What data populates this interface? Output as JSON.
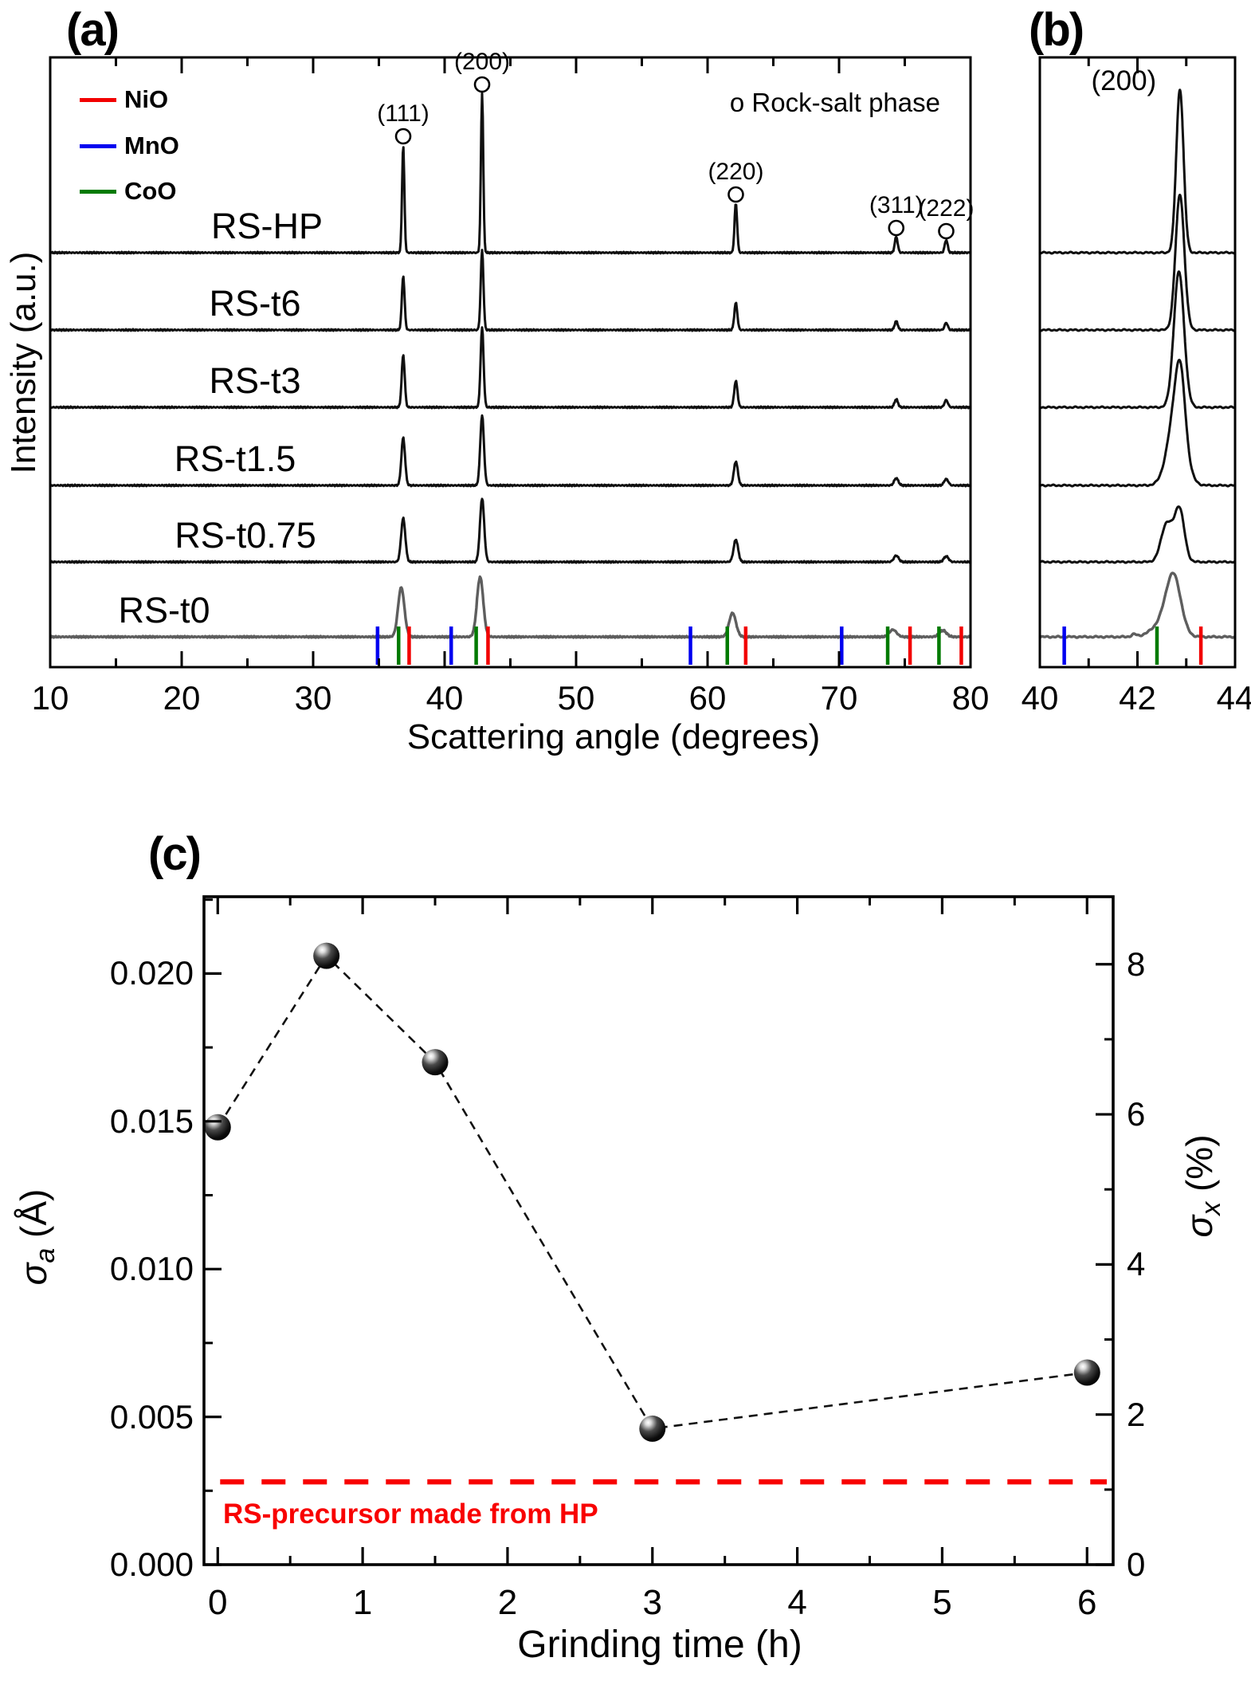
{
  "chart_data": [
    {
      "id": "a",
      "type": "line",
      "title": "(a)",
      "xlabel": "Scattering angle (degrees)",
      "ylabel": "Intensity (a.u.)",
      "note": "o Rock-salt phase",
      "xlim": [
        10,
        80
      ],
      "xticks": [
        10,
        20,
        30,
        40,
        50,
        60,
        70,
        80
      ],
      "minor_tick_step": 5,
      "grid": false,
      "legend_position": "top-left",
      "legend": [
        {
          "label": "NiO",
          "color": "#f20000"
        },
        {
          "label": "MnO",
          "color": "#0000f0"
        },
        {
          "label": "CoO",
          "color": "#007a00"
        }
      ],
      "peak_labels": [
        {
          "text": "(111)",
          "angle": 36.85,
          "marker": "circle"
        },
        {
          "text": "(200)",
          "angle": 42.85,
          "marker": "circle"
        },
        {
          "text": "(220)",
          "angle": 62.15,
          "marker": "circle"
        },
        {
          "text": "(311)",
          "angle": 74.35,
          "marker": "circle"
        },
        {
          "text": "(222)",
          "angle": 78.15,
          "marker": "circle"
        }
      ],
      "series": [
        {
          "label": "RS-HP",
          "color": "#101010",
          "peaks": [
            [
              36.85,
              135,
              0.09
            ],
            [
              42.85,
              200,
              0.09
            ],
            [
              62.15,
              62,
              0.1
            ],
            [
              74.35,
              20,
              0.11
            ],
            [
              78.15,
              16,
              0.11
            ]
          ]
        },
        {
          "label": "RS-t6",
          "color": "#101010",
          "peaks": [
            [
              36.85,
              68,
              0.105
            ],
            [
              42.85,
              100,
              0.105
            ],
            [
              62.15,
              34,
              0.115
            ],
            [
              74.35,
              11,
              0.12
            ],
            [
              78.15,
              9,
              0.12
            ]
          ]
        },
        {
          "label": "RS-t3",
          "color": "#101010",
          "peaks": [
            [
              36.85,
              66,
              0.115
            ],
            [
              42.85,
              100,
              0.115
            ],
            [
              62.15,
              33,
              0.125
            ],
            [
              74.35,
              10,
              0.13
            ],
            [
              78.15,
              9,
              0.13
            ]
          ]
        },
        {
          "label": "RS-t1.5",
          "color": "#101010",
          "peaks": [
            [
              36.85,
              60,
              0.14
            ],
            [
              42.85,
              88,
              0.14
            ],
            [
              62.15,
              30,
              0.15
            ],
            [
              74.35,
              9,
              0.16
            ],
            [
              78.15,
              8,
              0.16
            ]
          ]
        },
        {
          "label": "RS-t0.75",
          "color": "#101010",
          "peaks": [
            [
              36.85,
              55,
              0.16
            ],
            [
              42.85,
              80,
              0.16
            ],
            [
              62.15,
              28,
              0.17
            ],
            [
              74.35,
              8,
              0.18
            ],
            [
              78.15,
              7,
              0.18
            ]
          ]
        },
        {
          "label": "RS-t0",
          "color": "#5e5e5e",
          "peaks": [
            [
              36.7,
              62,
              0.24
            ],
            [
              42.7,
              75,
              0.24
            ],
            [
              61.9,
              30,
              0.26
            ],
            [
              74.1,
              9,
              0.27
            ],
            [
              77.9,
              8,
              0.27
            ]
          ]
        }
      ],
      "reference_ticks": [
        {
          "phase": "NiO",
          "color": "#f20000",
          "angles": [
            37.3,
            43.3,
            62.9,
            75.4,
            79.3
          ]
        },
        {
          "phase": "MnO",
          "color": "#0000f0",
          "angles": [
            34.9,
            40.5,
            58.7,
            70.2
          ]
        },
        {
          "phase": "CoO",
          "color": "#007a00",
          "angles": [
            36.5,
            42.4,
            61.5,
            73.7,
            77.6
          ]
        }
      ]
    },
    {
      "id": "b",
      "type": "line",
      "title": "(b)",
      "xlabel": "",
      "xlim": [
        40,
        44
      ],
      "xticks": [
        40,
        42,
        44
      ],
      "minor_tick_step": 1,
      "grid": false,
      "peak_labels": [
        {
          "text": "(200)",
          "angle": 41.72,
          "marker": "none"
        }
      ],
      "series": [
        {
          "label": "RS-HP",
          "color": "#101010",
          "peaks": [
            [
              42.87,
              205,
              0.075
            ]
          ]
        },
        {
          "label": "RS-t6",
          "color": "#101010",
          "peaks": [
            [
              42.87,
              170,
              0.09
            ]
          ]
        },
        {
          "label": "RS-t3",
          "color": "#101010",
          "peaks": [
            [
              42.85,
              170,
              0.105
            ]
          ]
        },
        {
          "label": "RS-t1.5",
          "color": "#101010",
          "peaks": [
            [
              42.8,
              95,
              0.17
            ],
            [
              42.88,
              70,
              0.095
            ]
          ]
        },
        {
          "label": "RS-t0.75",
          "color": "#101010",
          "peaks": [
            [
              42.6,
              48,
              0.115
            ],
            [
              42.86,
              66,
              0.1
            ]
          ]
        },
        {
          "label": "RS-t0",
          "color": "#5e5e5e",
          "peaks": [
            [
              42.74,
              70,
              0.15
            ],
            [
              42.52,
              16,
              0.22
            ],
            [
              41.93,
              3,
              0.05
            ]
          ]
        }
      ],
      "reference_ticks": [
        {
          "phase": "NiO",
          "color": "#f20000",
          "angles": [
            43.3
          ]
        },
        {
          "phase": "MnO",
          "color": "#0000f0",
          "angles": [
            40.5
          ]
        },
        {
          "phase": "CoO",
          "color": "#007a00",
          "angles": [
            42.4
          ]
        }
      ]
    },
    {
      "id": "c",
      "type": "scatter",
      "title": "(c)",
      "xlabel": "Grinding time (h)",
      "ylabel_left": {
        "symbol": "σ",
        "subscript": "a",
        "unit": "(Å)"
      },
      "ylabel_right": {
        "symbol": "σ",
        "subscript": "x",
        "unit": "(%)"
      },
      "x": [
        0,
        0.75,
        1.5,
        3,
        6
      ],
      "sigma_a": [
        0.0148,
        0.0206,
        0.017,
        0.0046,
        0.0065
      ],
      "sigma_x": [
        5.8,
        8.1,
        6.7,
        1.8,
        2.6
      ],
      "xlim": [
        -0.095,
        6.18
      ],
      "ylim_left": [
        0,
        0.0226
      ],
      "ylim_right": [
        0,
        8.9
      ],
      "xticks": [
        0,
        1,
        2,
        3,
        4,
        5,
        6
      ],
      "xtick_minor_step": 0.5,
      "yticks_left": [
        "0.000",
        "0.005",
        "0.010",
        "0.015",
        "0.020"
      ],
      "yticks_left_values": [
        0,
        0.005,
        0.01,
        0.015,
        0.02
      ],
      "ytick_left_minor_step": 0.0025,
      "yticks_right": [
        "0",
        "2",
        "4",
        "6",
        "8"
      ],
      "yticks_right_values": [
        0,
        2,
        4,
        6,
        8
      ],
      "ytick_right_minor_step": 1,
      "line_style": "dashed",
      "marker": "sphere",
      "grid": false,
      "ref_line": {
        "value": 0.0028,
        "style": "dashed",
        "color": "#f80000",
        "label": "RS-precursor made from HP"
      }
    }
  ]
}
